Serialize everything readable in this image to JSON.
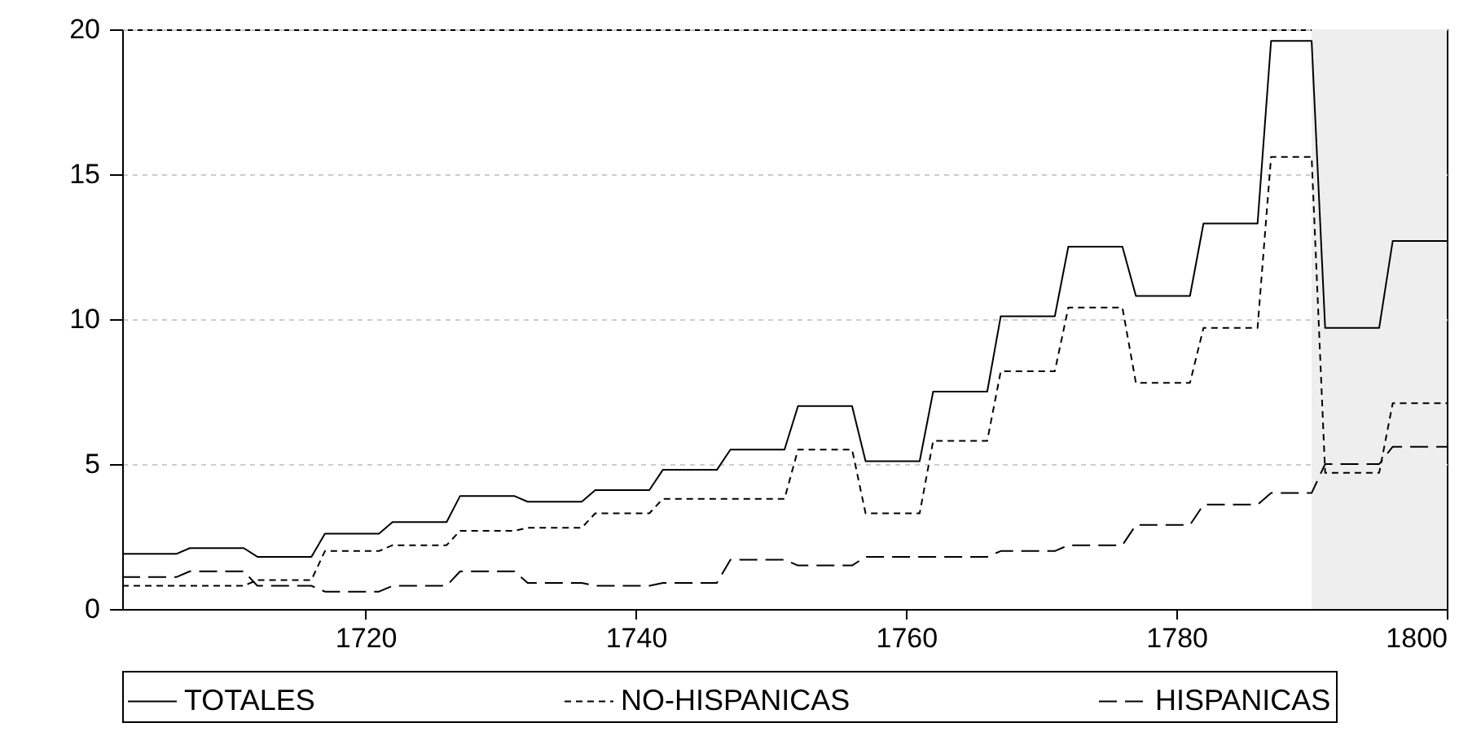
{
  "chart_data": {
    "type": "line",
    "x": [
      1702,
      1706,
      1707,
      1711,
      1712,
      1716,
      1717,
      1721,
      1722,
      1726,
      1727,
      1731,
      1732,
      1736,
      1737,
      1741,
      1742,
      1746,
      1747,
      1751,
      1752,
      1756,
      1757,
      1761,
      1762,
      1766,
      1767,
      1771,
      1772,
      1776,
      1777,
      1781,
      1782,
      1786,
      1787,
      1790,
      1791,
      1795,
      1796,
      1800
    ],
    "series": [
      {
        "name": "TOTALES",
        "color": "#000000",
        "line_style": "solid",
        "values": [
          1.9,
          1.9,
          2.1,
          2.1,
          1.8,
          1.8,
          2.6,
          2.6,
          3.0,
          3.0,
          3.9,
          3.9,
          3.7,
          3.7,
          4.1,
          4.1,
          4.8,
          4.8,
          5.5,
          5.5,
          7.0,
          7.0,
          5.1,
          5.1,
          7.5,
          7.5,
          10.1,
          10.1,
          12.5,
          12.5,
          10.8,
          10.8,
          13.3,
          13.3,
          19.6,
          19.6,
          9.7,
          9.7,
          12.7,
          12.7
        ]
      },
      {
        "name": "NO-HISPANICAS",
        "color": "#000000",
        "line_style": "dotted",
        "values": [
          0.8,
          0.8,
          0.8,
          0.8,
          1.0,
          1.0,
          2.0,
          2.0,
          2.2,
          2.2,
          2.7,
          2.7,
          2.8,
          2.8,
          3.3,
          3.3,
          3.8,
          3.8,
          3.8,
          3.8,
          5.5,
          5.5,
          3.3,
          3.3,
          5.8,
          5.8,
          8.2,
          8.2,
          10.4,
          10.4,
          7.8,
          7.8,
          9.7,
          9.7,
          15.6,
          15.6,
          4.7,
          4.7,
          7.1,
          7.1
        ]
      },
      {
        "name": "HISPANICAS",
        "color": "#000000",
        "line_style": "dashed",
        "values": [
          1.1,
          1.1,
          1.3,
          1.3,
          0.8,
          0.8,
          0.6,
          0.6,
          0.8,
          0.8,
          1.3,
          1.3,
          0.9,
          0.9,
          0.8,
          0.8,
          0.9,
          0.9,
          1.7,
          1.7,
          1.5,
          1.5,
          1.8,
          1.8,
          1.8,
          1.8,
          2.0,
          2.0,
          2.2,
          2.2,
          2.9,
          2.9,
          3.6,
          3.6,
          4.0,
          4.0,
          5.0,
          5.0,
          5.6,
          5.6
        ]
      }
    ],
    "xlim": [
      1702,
      1800
    ],
    "xticks": [
      1720,
      1740,
      1760,
      1780,
      1800
    ],
    "ylim": [
      0,
      20
    ],
    "yticks": [
      0,
      5,
      10,
      15,
      20
    ],
    "bands": [
      {
        "axis": "x",
        "from": 1790,
        "to": 1800,
        "color": "#eeeeee"
      }
    ],
    "grid": "y",
    "legend": "bottom"
  }
}
